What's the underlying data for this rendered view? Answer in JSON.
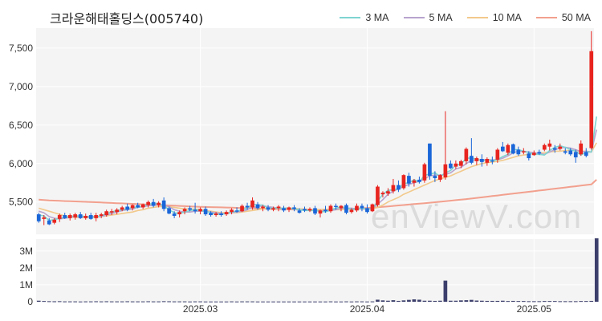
{
  "title": "크라운해태홀딩스(005740)",
  "watermark": "enViewV.com",
  "legend": [
    {
      "label": "3 MA",
      "color": "#7fd4d1"
    },
    {
      "label": "5 MA",
      "color": "#b8a4cf"
    },
    {
      "label": "10 MA",
      "color": "#f2c98b"
    },
    {
      "label": "50 MA",
      "color": "#f2a08e"
    }
  ],
  "colors": {
    "up": "#e8241f",
    "down": "#1a66d9",
    "volume": "#3c3f6b",
    "panel_bg": "#f4f4f4",
    "grid": "#ffffff"
  },
  "chart_data": {
    "type": "candlestick",
    "x_ticks": [
      {
        "label": "2025.03",
        "index": 31
      },
      {
        "label": "2025.04",
        "index": 63
      },
      {
        "label": "2025.05",
        "index": 95
      }
    ],
    "price_axis": {
      "ticks": [
        5500,
        6000,
        6500,
        7000,
        7500
      ],
      "tick_labels": [
        "5,500",
        "6,000",
        "6,500",
        "7,000",
        "7,500"
      ],
      "range": [
        5080,
        7760
      ]
    },
    "volume_axis": {
      "ticks": [
        0,
        1000000,
        2000000,
        3000000
      ],
      "tick_labels": [
        "0",
        "1M",
        "2M",
        "3M"
      ],
      "range": [
        0,
        3700000
      ]
    },
    "candles": [
      {
        "o": 5340,
        "h": 5360,
        "l": 5230,
        "c": 5250
      },
      {
        "o": 5280,
        "h": 5330,
        "l": 5200,
        "c": 5300
      },
      {
        "o": 5260,
        "h": 5290,
        "l": 5200,
        "c": 5210
      },
      {
        "o": 5230,
        "h": 5290,
        "l": 5210,
        "c": 5270
      },
      {
        "o": 5280,
        "h": 5350,
        "l": 5240,
        "c": 5330
      },
      {
        "o": 5330,
        "h": 5360,
        "l": 5280,
        "c": 5290
      },
      {
        "o": 5290,
        "h": 5350,
        "l": 5260,
        "c": 5330
      },
      {
        "o": 5300,
        "h": 5360,
        "l": 5270,
        "c": 5340
      },
      {
        "o": 5340,
        "h": 5370,
        "l": 5280,
        "c": 5290
      },
      {
        "o": 5290,
        "h": 5350,
        "l": 5270,
        "c": 5320
      },
      {
        "o": 5330,
        "h": 5360,
        "l": 5270,
        "c": 5280
      },
      {
        "o": 5290,
        "h": 5360,
        "l": 5250,
        "c": 5330
      },
      {
        "o": 5320,
        "h": 5360,
        "l": 5290,
        "c": 5340
      },
      {
        "o": 5330,
        "h": 5400,
        "l": 5310,
        "c": 5380
      },
      {
        "o": 5370,
        "h": 5410,
        "l": 5330,
        "c": 5380
      },
      {
        "o": 5370,
        "h": 5420,
        "l": 5340,
        "c": 5400
      },
      {
        "o": 5400,
        "h": 5450,
        "l": 5380,
        "c": 5430
      },
      {
        "o": 5440,
        "h": 5480,
        "l": 5380,
        "c": 5400
      },
      {
        "o": 5420,
        "h": 5470,
        "l": 5390,
        "c": 5460
      },
      {
        "o": 5460,
        "h": 5490,
        "l": 5420,
        "c": 5430
      },
      {
        "o": 5430,
        "h": 5480,
        "l": 5410,
        "c": 5470
      },
      {
        "o": 5460,
        "h": 5520,
        "l": 5430,
        "c": 5500
      },
      {
        "o": 5500,
        "h": 5540,
        "l": 5430,
        "c": 5450
      },
      {
        "o": 5460,
        "h": 5510,
        "l": 5430,
        "c": 5490
      },
      {
        "o": 5520,
        "h": 5560,
        "l": 5380,
        "c": 5410
      },
      {
        "o": 5420,
        "h": 5440,
        "l": 5340,
        "c": 5350
      },
      {
        "o": 5350,
        "h": 5380,
        "l": 5290,
        "c": 5320
      },
      {
        "o": 5340,
        "h": 5390,
        "l": 5300,
        "c": 5370
      },
      {
        "o": 5380,
        "h": 5430,
        "l": 5340,
        "c": 5410
      },
      {
        "o": 5420,
        "h": 5450,
        "l": 5380,
        "c": 5400
      },
      {
        "o": 5400,
        "h": 5490,
        "l": 5350,
        "c": 5380
      },
      {
        "o": 5380,
        "h": 5430,
        "l": 5340,
        "c": 5410
      },
      {
        "o": 5410,
        "h": 5440,
        "l": 5320,
        "c": 5340
      },
      {
        "o": 5360,
        "h": 5380,
        "l": 5310,
        "c": 5330
      },
      {
        "o": 5330,
        "h": 5370,
        "l": 5310,
        "c": 5350
      },
      {
        "o": 5350,
        "h": 5380,
        "l": 5310,
        "c": 5330
      },
      {
        "o": 5340,
        "h": 5390,
        "l": 5320,
        "c": 5370
      },
      {
        "o": 5370,
        "h": 5420,
        "l": 5340,
        "c": 5400
      },
      {
        "o": 5390,
        "h": 5430,
        "l": 5360,
        "c": 5380
      },
      {
        "o": 5380,
        "h": 5470,
        "l": 5370,
        "c": 5450
      },
      {
        "o": 5450,
        "h": 5490,
        "l": 5400,
        "c": 5430
      },
      {
        "o": 5430,
        "h": 5560,
        "l": 5400,
        "c": 5520
      },
      {
        "o": 5470,
        "h": 5500,
        "l": 5400,
        "c": 5420
      },
      {
        "o": 5420,
        "h": 5460,
        "l": 5380,
        "c": 5440
      },
      {
        "o": 5430,
        "h": 5460,
        "l": 5380,
        "c": 5400
      },
      {
        "o": 5400,
        "h": 5440,
        "l": 5380,
        "c": 5420
      },
      {
        "o": 5420,
        "h": 5460,
        "l": 5380,
        "c": 5440
      },
      {
        "o": 5420,
        "h": 5450,
        "l": 5370,
        "c": 5390
      },
      {
        "o": 5400,
        "h": 5440,
        "l": 5370,
        "c": 5430
      },
      {
        "o": 5430,
        "h": 5460,
        "l": 5380,
        "c": 5410
      },
      {
        "o": 5390,
        "h": 5420,
        "l": 5350,
        "c": 5360
      },
      {
        "o": 5410,
        "h": 5440,
        "l": 5370,
        "c": 5390
      },
      {
        "o": 5390,
        "h": 5430,
        "l": 5370,
        "c": 5410
      },
      {
        "o": 5420,
        "h": 5450,
        "l": 5330,
        "c": 5350
      },
      {
        "o": 5350,
        "h": 5400,
        "l": 5300,
        "c": 5390
      },
      {
        "o": 5400,
        "h": 5450,
        "l": 5360,
        "c": 5380
      },
      {
        "o": 5380,
        "h": 5470,
        "l": 5360,
        "c": 5450
      },
      {
        "o": 5450,
        "h": 5480,
        "l": 5400,
        "c": 5440
      },
      {
        "o": 5420,
        "h": 5460,
        "l": 5380,
        "c": 5450
      },
      {
        "o": 5460,
        "h": 5480,
        "l": 5340,
        "c": 5360
      },
      {
        "o": 5370,
        "h": 5420,
        "l": 5350,
        "c": 5400
      },
      {
        "o": 5390,
        "h": 5480,
        "l": 5370,
        "c": 5450
      },
      {
        "o": 5450,
        "h": 5480,
        "l": 5380,
        "c": 5420
      },
      {
        "o": 5420,
        "h": 5470,
        "l": 5350,
        "c": 5370
      },
      {
        "o": 5380,
        "h": 5480,
        "l": 5370,
        "c": 5470
      },
      {
        "o": 5460,
        "h": 5720,
        "l": 5440,
        "c": 5700
      },
      {
        "o": 5600,
        "h": 5640,
        "l": 5560,
        "c": 5620
      },
      {
        "o": 5610,
        "h": 5680,
        "l": 5580,
        "c": 5640
      },
      {
        "o": 5640,
        "h": 5800,
        "l": 5610,
        "c": 5720
      },
      {
        "o": 5720,
        "h": 5780,
        "l": 5630,
        "c": 5660
      },
      {
        "o": 5680,
        "h": 5860,
        "l": 5660,
        "c": 5850
      },
      {
        "o": 5840,
        "h": 5880,
        "l": 5700,
        "c": 5740
      },
      {
        "o": 5750,
        "h": 5800,
        "l": 5700,
        "c": 5780
      },
      {
        "o": 5790,
        "h": 5830,
        "l": 5740,
        "c": 5760
      },
      {
        "o": 5780,
        "h": 6010,
        "l": 5750,
        "c": 5990
      },
      {
        "o": 6260,
        "h": 6260,
        "l": 5790,
        "c": 5840
      },
      {
        "o": 5840,
        "h": 5900,
        "l": 5760,
        "c": 5810
      },
      {
        "o": 5790,
        "h": 5860,
        "l": 5760,
        "c": 5850
      },
      {
        "o": 5820,
        "h": 6680,
        "l": 5790,
        "c": 5990
      },
      {
        "o": 6000,
        "h": 6040,
        "l": 5930,
        "c": 5940
      },
      {
        "o": 5960,
        "h": 6040,
        "l": 5930,
        "c": 6000
      },
      {
        "o": 5970,
        "h": 6050,
        "l": 5940,
        "c": 6030
      },
      {
        "o": 6030,
        "h": 6210,
        "l": 5990,
        "c": 6190
      },
      {
        "o": 6100,
        "h": 6330,
        "l": 5990,
        "c": 6010
      },
      {
        "o": 6030,
        "h": 6090,
        "l": 5980,
        "c": 6070
      },
      {
        "o": 6060,
        "h": 6120,
        "l": 5960,
        "c": 6020
      },
      {
        "o": 6010,
        "h": 6080,
        "l": 5970,
        "c": 6060
      },
      {
        "o": 6040,
        "h": 6090,
        "l": 5990,
        "c": 6030
      },
      {
        "o": 6050,
        "h": 6200,
        "l": 6010,
        "c": 6180
      },
      {
        "o": 6220,
        "h": 6280,
        "l": 6150,
        "c": 6160
      },
      {
        "o": 6140,
        "h": 6260,
        "l": 6110,
        "c": 6240
      },
      {
        "o": 6250,
        "h": 6260,
        "l": 6120,
        "c": 6130
      },
      {
        "o": 6180,
        "h": 6220,
        "l": 6100,
        "c": 6120
      },
      {
        "o": 6150,
        "h": 6200,
        "l": 6120,
        "c": 6160
      },
      {
        "o": 6130,
        "h": 6160,
        "l": 6040,
        "c": 6070
      },
      {
        "o": 6110,
        "h": 6170,
        "l": 6100,
        "c": 6140
      },
      {
        "o": 6150,
        "h": 6180,
        "l": 6110,
        "c": 6130
      },
      {
        "o": 6180,
        "h": 6260,
        "l": 6160,
        "c": 6240
      },
      {
        "o": 6220,
        "h": 6310,
        "l": 6170,
        "c": 6260
      },
      {
        "o": 6200,
        "h": 6240,
        "l": 6140,
        "c": 6180
      },
      {
        "o": 6190,
        "h": 6260,
        "l": 6170,
        "c": 6220
      },
      {
        "o": 6160,
        "h": 6200,
        "l": 6120,
        "c": 6140
      },
      {
        "o": 6170,
        "h": 6200,
        "l": 6100,
        "c": 6120
      },
      {
        "o": 6150,
        "h": 6180,
        "l": 6010,
        "c": 6080
      },
      {
        "o": 6120,
        "h": 6300,
        "l": 6100,
        "c": 6260
      },
      {
        "o": 6150,
        "h": 6200,
        "l": 6080,
        "c": 6100
      },
      {
        "o": 6200,
        "h": 7720,
        "l": 6180,
        "c": 7460
      }
    ],
    "volume": [
      60000,
      40000,
      30000,
      25000,
      30000,
      20000,
      20000,
      20000,
      15000,
      20000,
      20000,
      25000,
      20000,
      25000,
      20000,
      20000,
      20000,
      25000,
      20000,
      20000,
      20000,
      25000,
      20000,
      20000,
      30000,
      25000,
      20000,
      20000,
      20000,
      15000,
      20000,
      20000,
      15000,
      15000,
      15000,
      15000,
      15000,
      20000,
      15000,
      20000,
      20000,
      20000,
      15000,
      15000,
      15000,
      15000,
      15000,
      15000,
      15000,
      15000,
      15000,
      15000,
      15000,
      15000,
      15000,
      15000,
      20000,
      15000,
      15000,
      20000,
      15000,
      20000,
      20000,
      15000,
      20000,
      120000,
      80000,
      60000,
      90000,
      50000,
      80000,
      110000,
      140000,
      120000,
      60000,
      60000,
      50000,
      60000,
      1250000,
      60000,
      60000,
      80000,
      90000,
      110000,
      70000,
      60000,
      50000,
      50000,
      50000,
      60000,
      40000,
      50000,
      40000,
      40000,
      30000,
      30000,
      30000,
      40000,
      40000,
      40000,
      30000,
      30000,
      30000,
      30000,
      40000,
      40000,
      50000,
      3750000
    ],
    "ma3": [
      5330,
      5320,
      5260,
      5270,
      5290,
      5300,
      5310,
      5320,
      5320,
      5310,
      5300,
      5310,
      5320,
      5350,
      5370,
      5390,
      5400,
      5410,
      5430,
      5430,
      5450,
      5470,
      5480,
      5480,
      5450,
      5400,
      5360,
      5350,
      5370,
      5390,
      5400,
      5390,
      5380,
      5360,
      5340,
      5340,
      5350,
      5370,
      5380,
      5400,
      5420,
      5470,
      5460,
      5460,
      5420,
      5420,
      5420,
      5420,
      5420,
      5410,
      5400,
      5390,
      5390,
      5390,
      5380,
      5370,
      5400,
      5420,
      5440,
      5420,
      5410,
      5400,
      5420,
      5410,
      5410,
      5510,
      5600,
      5650,
      5660,
      5670,
      5740,
      5750,
      5790,
      5760,
      5850,
      5860,
      5880,
      5830,
      5880,
      5910,
      5980,
      5990,
      6070,
      6070,
      6060,
      6030,
      6050,
      6040,
      6050,
      6090,
      6120,
      6180,
      6180,
      6160,
      6140,
      6120,
      6120,
      6110,
      6170,
      6210,
      6230,
      6210,
      6180,
      6160,
      6110,
      6150,
      6150,
      6610
    ],
    "ma5": [
      5380,
      5360,
      5310,
      5290,
      5280,
      5290,
      5300,
      5310,
      5310,
      5310,
      5310,
      5310,
      5310,
      5330,
      5350,
      5370,
      5390,
      5400,
      5410,
      5430,
      5440,
      5450,
      5460,
      5470,
      5460,
      5440,
      5400,
      5380,
      5370,
      5370,
      5380,
      5380,
      5380,
      5370,
      5360,
      5350,
      5350,
      5360,
      5370,
      5380,
      5400,
      5430,
      5440,
      5450,
      5440,
      5430,
      5420,
      5420,
      5420,
      5410,
      5400,
      5400,
      5390,
      5390,
      5380,
      5380,
      5390,
      5400,
      5420,
      5420,
      5420,
      5410,
      5410,
      5410,
      5420,
      5470,
      5530,
      5600,
      5640,
      5670,
      5700,
      5730,
      5750,
      5770,
      5800,
      5840,
      5850,
      5850,
      5860,
      5880,
      5930,
      5950,
      6000,
      6040,
      6050,
      6050,
      6050,
      6050,
      6050,
      6070,
      6100,
      6140,
      6160,
      6160,
      6150,
      6140,
      6130,
      6120,
      6150,
      6180,
      6200,
      6210,
      6200,
      6180,
      6150,
      6160,
      6150,
      6440
    ],
    "ma10": [
      5420,
      5400,
      5380,
      5360,
      5340,
      5320,
      5310,
      5300,
      5300,
      5300,
      5300,
      5300,
      5310,
      5320,
      5330,
      5340,
      5350,
      5360,
      5370,
      5390,
      5400,
      5420,
      5430,
      5440,
      5440,
      5440,
      5430,
      5420,
      5410,
      5410,
      5410,
      5400,
      5390,
      5380,
      5370,
      5360,
      5360,
      5360,
      5360,
      5370,
      5380,
      5390,
      5400,
      5410,
      5420,
      5420,
      5420,
      5420,
      5420,
      5420,
      5410,
      5410,
      5400,
      5400,
      5400,
      5400,
      5400,
      5400,
      5400,
      5410,
      5410,
      5410,
      5410,
      5410,
      5410,
      5430,
      5460,
      5500,
      5530,
      5560,
      5600,
      5630,
      5660,
      5690,
      5720,
      5750,
      5780,
      5800,
      5820,
      5840,
      5870,
      5900,
      5930,
      5960,
      5980,
      6000,
      6010,
      6020,
      6030,
      6040,
      6060,
      6080,
      6100,
      6110,
      6120,
      6130,
      6140,
      6140,
      6150,
      6160,
      6160,
      6170,
      6170,
      6170,
      6160,
      6160,
      6150,
      6270
    ],
    "ma50": [
      5530,
      5525,
      5520,
      5518,
      5515,
      5512,
      5510,
      5508,
      5505,
      5502,
      5500,
      5497,
      5494,
      5491,
      5488,
      5485,
      5482,
      5479,
      5476,
      5473,
      5470,
      5467,
      5464,
      5461,
      5458,
      5455,
      5452,
      5449,
      5446,
      5443,
      5440,
      5438,
      5436,
      5434,
      5432,
      5430,
      5428,
      5426,
      5424,
      5422,
      5420,
      5418,
      5416,
      5414,
      5412,
      5410,
      5408,
      5406,
      5404,
      5402,
      5400,
      5399,
      5399,
      5400,
      5401,
      5402,
      5404,
      5406,
      5408,
      5410,
      5413,
      5416,
      5419,
      5423,
      5427,
      5432,
      5437,
      5443,
      5449,
      5455,
      5461,
      5467,
      5473,
      5479,
      5485,
      5491,
      5497,
      5503,
      5510,
      5517,
      5524,
      5531,
      5538,
      5545,
      5553,
      5561,
      5569,
      5577,
      5585,
      5593,
      5601,
      5609,
      5617,
      5625,
      5633,
      5641,
      5649,
      5657,
      5665,
      5673,
      5681,
      5689,
      5697,
      5705,
      5713,
      5721,
      5730,
      5790
    ]
  }
}
